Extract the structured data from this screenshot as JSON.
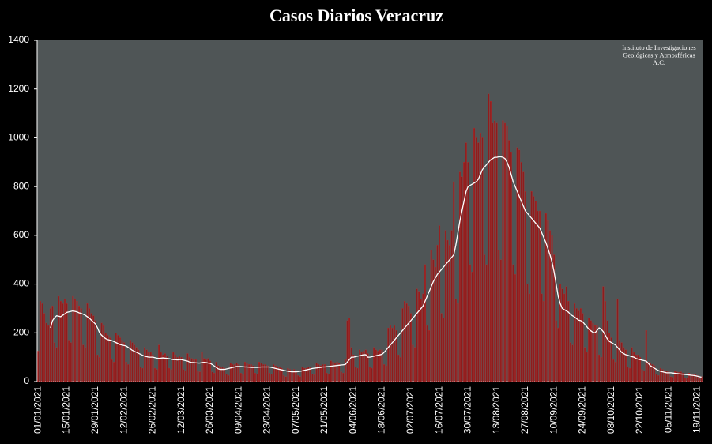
{
  "chart_data": {
    "type": "bar",
    "title": "Casos Diarios Veracruz",
    "annotation": [
      "Instituto de Investigaciones",
      "Geológicas y Atmosféricas",
      "A.C."
    ],
    "categories": [
      "01/01/2021",
      null,
      null,
      null,
      null,
      null,
      null,
      null,
      null,
      null,
      null,
      null,
      null,
      null,
      "15/01/2021",
      null,
      null,
      null,
      null,
      null,
      null,
      null,
      null,
      null,
      null,
      null,
      null,
      null,
      "29/01/2021",
      null,
      null,
      null,
      null,
      null,
      null,
      null,
      null,
      null,
      null,
      null,
      null,
      null,
      "12/02/2021",
      null,
      null,
      null,
      null,
      null,
      null,
      null,
      null,
      null,
      null,
      null,
      null,
      null,
      "26/02/2021",
      null,
      null,
      null,
      null,
      null,
      null,
      null,
      null,
      null,
      null,
      null,
      null,
      null,
      "12/03/2021",
      null,
      null,
      null,
      null,
      null,
      null,
      null,
      null,
      null,
      null,
      null,
      null,
      null,
      "26/03/2021",
      null,
      null,
      null,
      null,
      null,
      null,
      null,
      null,
      null,
      null,
      null,
      null,
      null,
      "09/04/2021",
      null,
      null,
      null,
      null,
      null,
      null,
      null,
      null,
      null,
      null,
      null,
      null,
      null,
      "23/04/2021",
      null,
      null,
      null,
      null,
      null,
      null,
      null,
      null,
      null,
      null,
      null,
      null,
      null,
      "07/05/2021",
      null,
      null,
      null,
      null,
      null,
      null,
      null,
      null,
      null,
      null,
      null,
      null,
      null,
      "21/05/2021",
      null,
      null,
      null,
      null,
      null,
      null,
      null,
      null,
      null,
      null,
      null,
      null,
      null,
      "04/06/2021",
      null,
      null,
      null,
      null,
      null,
      null,
      null,
      null,
      null,
      null,
      null,
      null,
      null,
      "18/06/2021",
      null,
      null,
      null,
      null,
      null,
      null,
      null,
      null,
      null,
      null,
      null,
      null,
      null,
      "02/07/2021",
      null,
      null,
      null,
      null,
      null,
      null,
      null,
      null,
      null,
      null,
      null,
      null,
      null,
      "16/07/2021",
      null,
      null,
      null,
      null,
      null,
      null,
      null,
      null,
      null,
      null,
      null,
      null,
      null,
      "30/07/2021",
      null,
      null,
      null,
      null,
      null,
      null,
      null,
      null,
      null,
      null,
      null,
      null,
      null,
      "13/08/2021",
      null,
      null,
      null,
      null,
      null,
      null,
      null,
      null,
      null,
      null,
      null,
      null,
      null,
      "27/08/2021",
      null,
      null,
      null,
      null,
      null,
      null,
      null,
      null,
      null,
      null,
      null,
      null,
      null,
      "10/09/2021",
      null,
      null,
      null,
      null,
      null,
      null,
      null,
      null,
      null,
      null,
      null,
      null,
      null,
      "24/09/2021",
      null,
      null,
      null,
      null,
      null,
      null,
      null,
      null,
      null,
      null,
      null,
      null,
      null,
      "08/10/2021",
      null,
      null,
      null,
      null,
      null,
      null,
      null,
      null,
      null,
      null,
      null,
      null,
      null,
      "22/10/2021",
      null,
      null,
      null,
      null,
      null,
      null,
      null,
      null,
      null,
      null,
      null,
      null,
      null,
      "05/11/2021",
      null,
      null,
      null,
      null,
      null,
      null,
      null,
      null,
      null,
      null,
      null,
      null,
      null,
      "19/11/2021",
      null,
      null
    ],
    "series": [
      {
        "type": "bar",
        "color": "#8e1c1c",
        "values": [
          125,
          330,
          320,
          280,
          240,
          230,
          300,
          310,
          160,
          140,
          350,
          330,
          320,
          340,
          320,
          170,
          160,
          350,
          340,
          330,
          310,
          300,
          150,
          140,
          320,
          300,
          280,
          270,
          250,
          110,
          100,
          240,
          230,
          200,
          190,
          180,
          90,
          80,
          200,
          190,
          180,
          170,
          160,
          80,
          70,
          170,
          160,
          150,
          140,
          130,
          60,
          55,
          140,
          130,
          120,
          120,
          110,
          55,
          50,
          150,
          120,
          110,
          115,
          105,
          55,
          50,
          120,
          110,
          100,
          105,
          100,
          50,
          45,
          115,
          100,
          95,
          90,
          90,
          45,
          40,
          120,
          95,
          90,
          95,
          85,
          40,
          35,
          80,
          65,
          60,
          60,
          55,
          30,
          25,
          75,
          70,
          70,
          75,
          70,
          35,
          30,
          80,
          75,
          70,
          70,
          65,
          35,
          30,
          80,
          75,
          70,
          70,
          65,
          35,
          30,
          70,
          65,
          60,
          60,
          55,
          25,
          20,
          55,
          50,
          45,
          50,
          45,
          25,
          20,
          60,
          55,
          55,
          60,
          60,
          30,
          28,
          75,
          70,
          65,
          70,
          70,
          35,
          30,
          85,
          80,
          75,
          80,
          75,
          40,
          35,
          90,
          250,
          260,
          140,
          110,
          60,
          55,
          130,
          120,
          125,
          130,
          115,
          60,
          55,
          140,
          130,
          125,
          130,
          130,
          70,
          65,
          220,
          230,
          220,
          230,
          210,
          110,
          100,
          300,
          330,
          320,
          310,
          280,
          150,
          140,
          380,
          370,
          340,
          360,
          480,
          230,
          210,
          540,
          500,
          470,
          560,
          640,
          280,
          260,
          620,
          580,
          560,
          620,
          820,
          340,
          320,
          860,
          840,
          900,
          980,
          900,
          480,
          450,
          1040,
          1000,
          980,
          1020,
          1000,
          520,
          480,
          1180,
          1150,
          1060,
          1070,
          1060,
          540,
          500,
          1070,
          1060,
          1050,
          990,
          940,
          480,
          440,
          960,
          950,
          900,
          860,
          780,
          400,
          360,
          780,
          760,
          740,
          700,
          700,
          360,
          330,
          690,
          660,
          620,
          600,
          520,
          250,
          220,
          400,
          380,
          360,
          390,
          330,
          160,
          150,
          320,
          300,
          290,
          300,
          280,
          140,
          120,
          260,
          250,
          240,
          230,
          230,
          110,
          100,
          390,
          330,
          250,
          200,
          180,
          90,
          80,
          340,
          170,
          160,
          140,
          130,
          60,
          55,
          140,
          120,
          110,
          110,
          100,
          50,
          45,
          210,
          80,
          75,
          70,
          65,
          30,
          25,
          55,
          50,
          45,
          45,
          40,
          20,
          18,
          45,
          40,
          38,
          40,
          35,
          16,
          15,
          35,
          32,
          30,
          30,
          25,
          12,
          20
        ]
      },
      {
        "type": "line",
        "color": "#ffffff",
        "values": [
          null,
          null,
          null,
          null,
          null,
          null,
          220,
          250,
          262,
          270,
          268,
          266,
          272,
          278,
          284,
          286,
          288,
          290,
          288,
          286,
          282,
          280,
          276,
          272,
          266,
          260,
          252,
          244,
          236,
          220,
          200,
          190,
          182,
          176,
          172,
          170,
          168,
          164,
          160,
          156,
          152,
          150,
          148,
          146,
          140,
          134,
          128,
          124,
          120,
          116,
          112,
          108,
          104,
          102,
          100,
          100,
          100,
          98,
          96,
          95,
          96,
          97,
          96,
          95,
          94,
          92,
          90,
          90,
          89,
          90,
          90,
          88,
          86,
          84,
          80,
          78,
          78,
          77,
          76,
          76,
          78,
          79,
          78,
          76,
          75,
          70,
          64,
          58,
          52,
          50,
          50,
          50,
          52,
          54,
          56,
          58,
          60,
          62,
          62,
          62,
          61,
          60,
          60,
          59,
          58,
          58,
          58,
          58,
          59,
          60,
          60,
          60,
          60,
          60,
          58,
          56,
          54,
          52,
          50,
          48,
          46,
          44,
          42,
          41,
          40,
          40,
          40,
          41,
          42,
          44,
          46,
          48,
          50,
          52,
          54,
          55,
          56,
          57,
          58,
          60,
          60,
          61,
          62,
          63,
          64,
          65,
          66,
          67,
          68,
          69,
          70,
          80,
          90,
          100,
          100,
          102,
          104,
          106,
          108,
          110,
          110,
          100,
          100,
          102,
          104,
          106,
          108,
          110,
          112,
          120,
          130,
          140,
          150,
          160,
          170,
          180,
          190,
          200,
          210,
          220,
          230,
          240,
          250,
          260,
          270,
          280,
          290,
          300,
          310,
          330,
          350,
          370,
          390,
          410,
          425,
          440,
          450,
          460,
          470,
          480,
          490,
          500,
          510,
          520,
          560,
          610,
          660,
          700,
          740,
          780,
          800,
          805,
          810,
          815,
          820,
          830,
          850,
          870,
          880,
          890,
          900,
          910,
          915,
          920,
          920,
          922,
          922,
          920,
          915,
          900,
          880,
          850,
          820,
          800,
          780,
          760,
          740,
          720,
          700,
          690,
          680,
          670,
          660,
          650,
          640,
          630,
          610,
          590,
          570,
          545,
          520,
          490,
          450,
          400,
          350,
          320,
          300,
          295,
          290,
          285,
          275,
          270,
          265,
          258,
          252,
          250,
          245,
          235,
          225,
          215,
          208,
          202,
          200,
          210,
          220,
          215,
          205,
          190,
          175,
          165,
          160,
          155,
          150,
          140,
          130,
          120,
          115,
          110,
          108,
          105,
          102,
          100,
          95,
          92,
          90,
          88,
          86,
          84,
          75,
          65,
          60,
          55,
          50,
          45,
          42,
          40,
          38,
          36,
          36,
          36,
          35,
          34,
          33,
          32,
          31,
          30,
          29,
          28,
          27,
          26,
          25,
          24,
          22,
          20,
          18
        ]
      }
    ],
    "ylim": [
      0,
      1400
    ],
    "yticks": [
      0,
      200,
      400,
      600,
      800,
      1000,
      1200,
      1400
    ],
    "plot_background": "#4f5556",
    "grid": false
  }
}
